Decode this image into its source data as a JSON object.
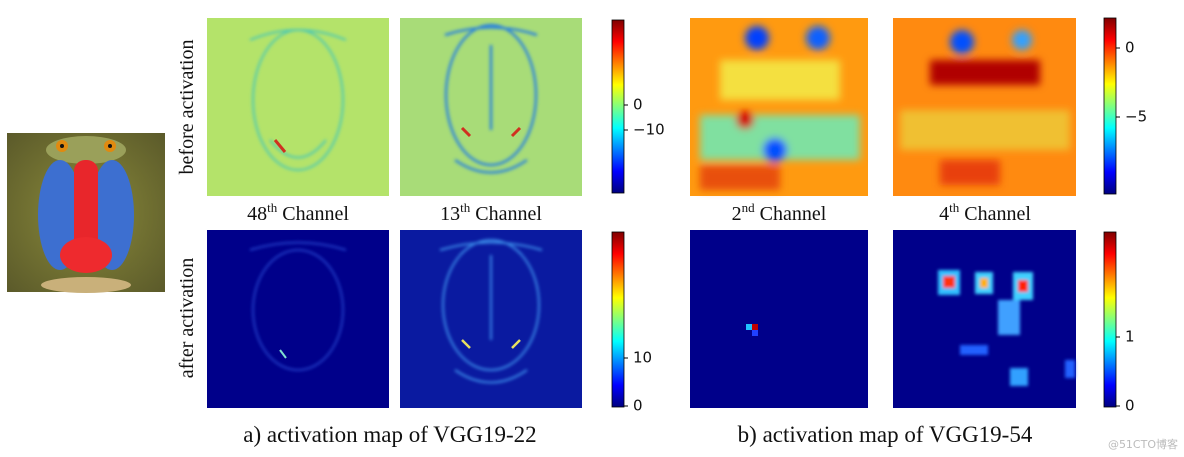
{
  "row_labels": [
    "before activation",
    "after activation"
  ],
  "panels": [
    {
      "caption": "a) activation map of VGG19-22",
      "channels": [
        {
          "number": "48",
          "suffix": "th",
          "word": "Channel"
        },
        {
          "number": "13",
          "suffix": "th",
          "word": "Channel"
        }
      ],
      "colorbars": [
        {
          "ticks": [
            "0",
            "−10"
          ]
        },
        {
          "ticks": [
            "10",
            "0"
          ]
        }
      ]
    },
    {
      "caption": "b) activation map of VGG19-54",
      "channels": [
        {
          "number": "2",
          "suffix": "nd",
          "word": "Channel"
        },
        {
          "number": "4",
          "suffix": "th",
          "word": "Channel"
        }
      ],
      "colorbars": [
        {
          "ticks": [
            "0",
            "−5"
          ]
        },
        {
          "ticks": [
            "1",
            "0"
          ]
        }
      ]
    }
  ],
  "watermark": "@51CTO博客"
}
